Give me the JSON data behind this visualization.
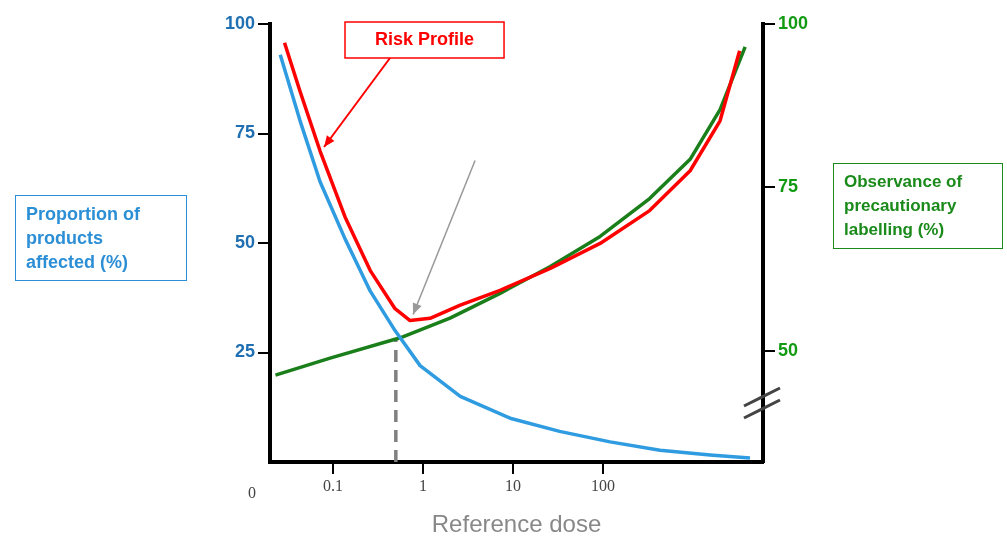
{
  "chart_data": {
    "type": "line",
    "xlabel": "Reference dose",
    "ylabel": "Proportion of products affected (%)",
    "y2label": "Observance of precautionary labelling (%)",
    "log": "x",
    "xlim": [
      0.02,
      6000
    ],
    "xticks": [
      0.1,
      1,
      10,
      100
    ],
    "ylim": [
      0,
      100
    ],
    "yticks": [
      25,
      50,
      75,
      100
    ],
    "y2lim": [
      33,
      100
    ],
    "y2ticks": [
      50,
      75,
      100
    ],
    "grid": false,
    "legend": false,
    "marker": "none",
    "series": [
      {
        "color": "#2f9be0",
        "x": [
          0.026,
          0.043,
          0.072,
          0.136,
          0.26,
          0.49,
          0.93,
          2.6,
          9.3,
          33,
          120,
          430,
          1550,
          4300
        ],
        "values": [
          93,
          78,
          64,
          51,
          39,
          30,
          22,
          15,
          10,
          7,
          4.6,
          2.7,
          1.6,
          0.9
        ]
      },
      {
        "color": "#ff0000",
        "x": [
          0.029,
          0.043,
          0.072,
          0.136,
          0.26,
          0.49,
          0.72,
          1.2,
          2.6,
          7.2,
          26,
          93,
          330,
          930,
          2000,
          3300
        ],
        "values": [
          95.7,
          84.7,
          71,
          56,
          43.7,
          35,
          32.3,
          32.8,
          35.8,
          39.2,
          44.2,
          49.9,
          57.4,
          66.5,
          77.9,
          93.9
        ]
      },
      {
        "color": "#1a7f1a",
        "axis": "y2",
        "x": [
          0.023,
          0.093,
          0.56,
          2,
          7.2,
          26,
          93,
          330,
          930,
          2000,
          3800
        ],
        "values": [
          46.3,
          48.9,
          52,
          55,
          58.8,
          62.9,
          67.5,
          73.3,
          79.3,
          86.9,
          96.5
        ]
      },
      {
        "color": "#808080",
        "line_style": "dashed",
        "x": [
          0.5,
          0.5
        ],
        "values": [
          0,
          28
        ]
      }
    ],
    "annotations": [
      "0",
      {
        "text": "Risk Profile",
        "x": 0.072,
        "y": 71
      }
    ]
  }
}
